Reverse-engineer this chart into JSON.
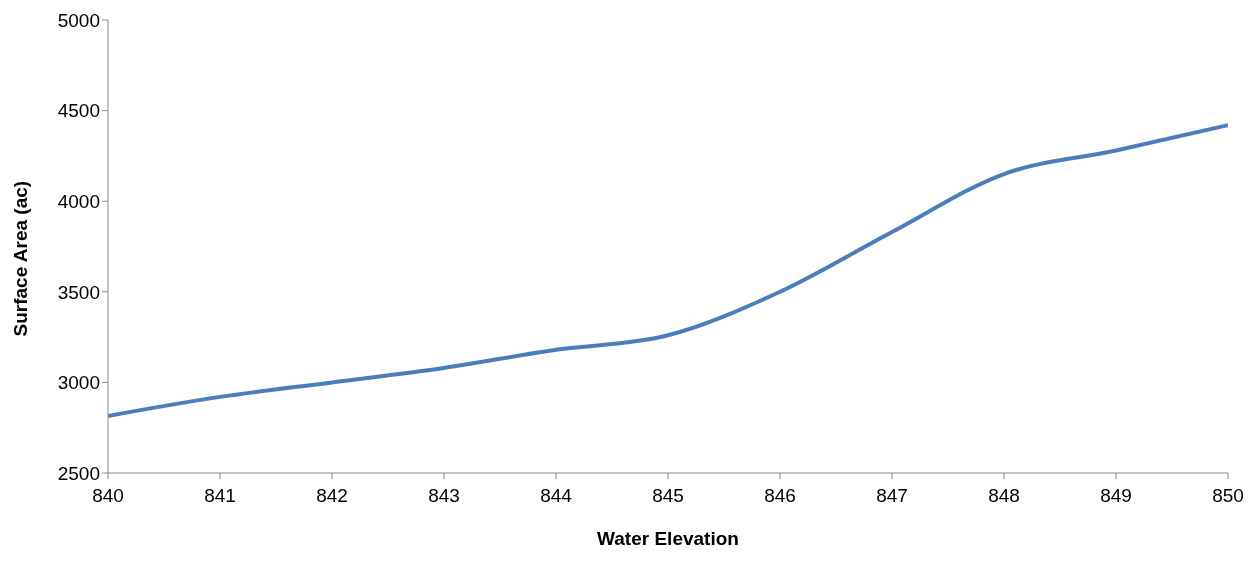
{
  "chart_data": {
    "type": "line",
    "xlabel": "Water Elevation",
    "ylabel": "Surface Area (ac)",
    "x": [
      840,
      841,
      842,
      843,
      844,
      845,
      846,
      847,
      848,
      849,
      850
    ],
    "series": [
      {
        "color": "#4a7ebb",
        "values": [
          2815,
          2920,
          3000,
          3080,
          3180,
          3260,
          3500,
          3830,
          4150,
          4280,
          4420
        ]
      }
    ],
    "xlim": [
      840,
      850
    ],
    "xticks": [
      840,
      841,
      842,
      843,
      844,
      845,
      846,
      847,
      848,
      849,
      850
    ],
    "ylim": [
      2500,
      5000
    ],
    "yticks": [
      2500,
      3000,
      3500,
      4000,
      4500,
      5000
    ],
    "grid": false,
    "legend": false,
    "marker": "none",
    "line_style": "solid"
  }
}
